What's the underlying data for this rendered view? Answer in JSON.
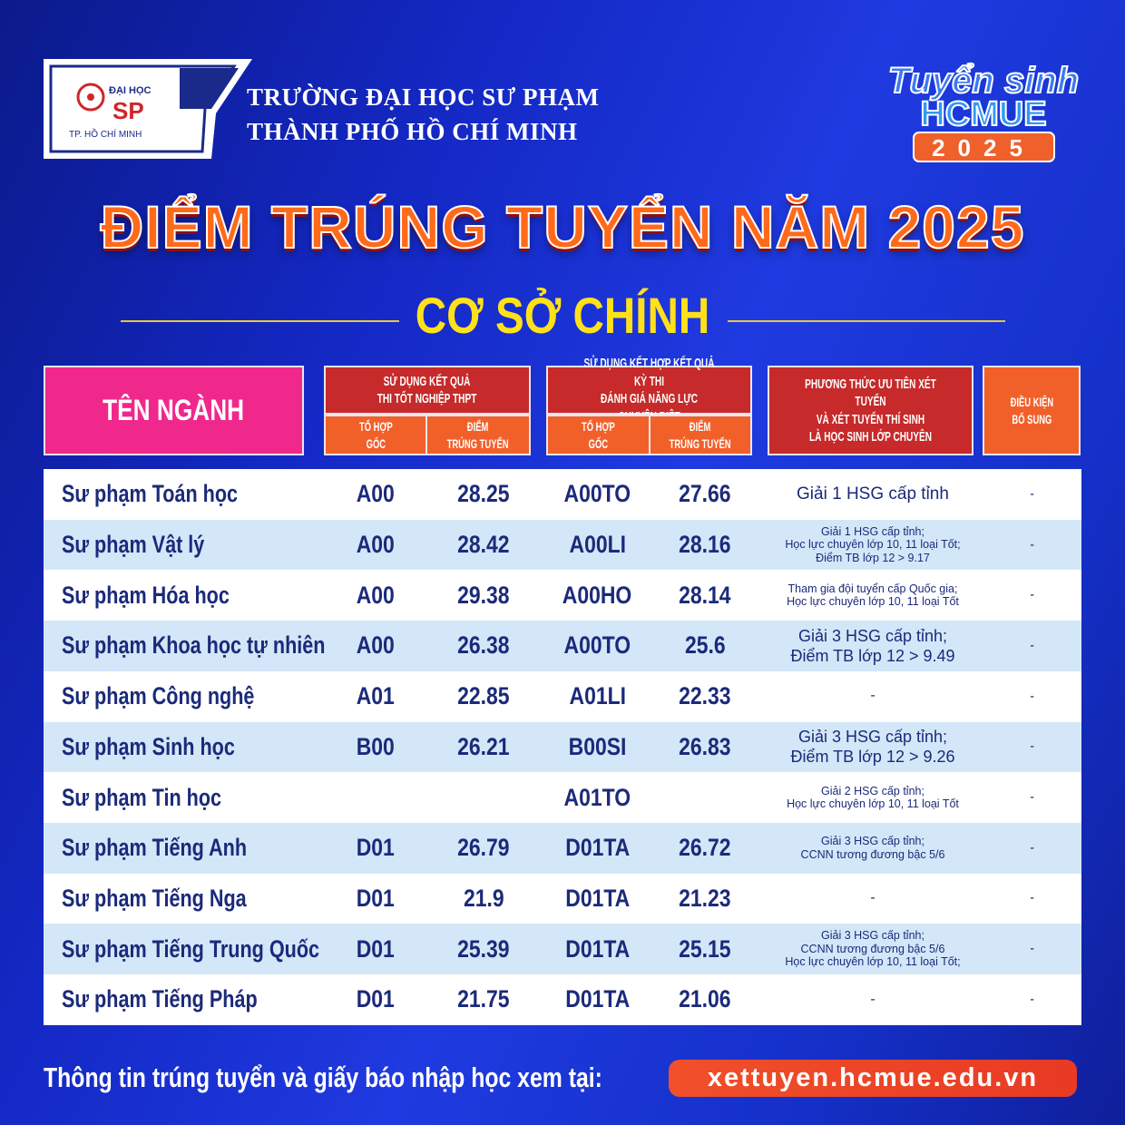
{
  "header": {
    "logo_text": {
      "top": "ĐẠI HỌC",
      "mid": "SP",
      "bottom": "TP. HỒ CHÍ MINH"
    },
    "school_line1": "TRƯỜNG ĐẠI HỌC SƯ PHẠM",
    "school_line2": "THÀNH PHỐ HỒ CHÍ MINH",
    "badge": {
      "line1": "Tuyển sinh",
      "line2": "HCMUE",
      "line3": "2025"
    }
  },
  "title": "ĐIỂM TRÚNG TUYỂN NĂM 2025",
  "subtitle": "CƠ SỞ CHÍNH",
  "table": {
    "headers": {
      "name": "TÊN NGÀNH",
      "group1": "SỬ DỤNG KẾT QUẢ THI TỐT NGHIỆP THPT",
      "group1_line1": "SỬ DỤNG KẾT QUẢ",
      "group1_line2": "THI TỐT NGHIỆP THPT",
      "group2_line1": "SỬ DỤNG KẾT HỢP KẾT QUẢ KỲ THI",
      "group2_line2": "ĐÁNH GIÁ NĂNG LỰC CHUYÊN BIỆT",
      "combo_line1": "TỔ HỢP",
      "combo_line2": "GỐC",
      "score_line1": "ĐIỂM",
      "score_line2": "TRÚNG TUYỂN",
      "priority_line1": "PHƯƠNG THỨC ƯU TIÊN XÉT TUYỂN",
      "priority_line2": "VÀ XÉT TUYỂN THÍ SINH",
      "priority_line3": "LÀ HỌC SINH LỚP CHUYÊN",
      "extra_line1": "ĐIỀU KIỆN",
      "extra_line2": "BỔ SUNG"
    },
    "rows": [
      {
        "name": "Sư phạm Toán học",
        "combo1": "A00",
        "score1": "28.25",
        "combo2": "A00TO",
        "score2": "27.66",
        "condition": [
          "Giải 1 HSG cấp tỉnh"
        ],
        "extra": "-"
      },
      {
        "name": "Sư phạm Vật lý",
        "combo1": "A00",
        "score1": "28.42",
        "combo2": "A00LI",
        "score2": "28.16",
        "condition": [
          "Giải 1 HSG cấp tỉnh;",
          "Học lực chuyên lớp 10, 11 loại Tốt;",
          "Điểm TB lớp 12 > 9.17"
        ],
        "extra": "-"
      },
      {
        "name": "Sư phạm Hóa học",
        "combo1": "A00",
        "score1": "29.38",
        "combo2": "A00HO",
        "score2": "28.14",
        "condition": [
          "Tham gia đội tuyển cấp Quốc gia;",
          "Học lực chuyên lớp 10, 11 loại Tốt"
        ],
        "extra": "-"
      },
      {
        "name": "Sư phạm Khoa học tự nhiên",
        "combo1": "A00",
        "score1": "26.38",
        "combo2": "A00TO",
        "score2": "25.6",
        "condition": [
          "Giải 3 HSG cấp tỉnh;",
          "Điểm TB lớp 12 > 9.49"
        ],
        "extra": "-"
      },
      {
        "name": "Sư phạm Công nghệ",
        "combo1": "A01",
        "score1": "22.85",
        "combo2": "A01LI",
        "score2": "22.33",
        "condition": [
          "-"
        ],
        "extra": "-"
      },
      {
        "name": "Sư phạm Sinh học",
        "combo1": "B00",
        "score1": "26.21",
        "combo2": "B00SI",
        "score2": "26.83",
        "condition": [
          "Giải 3 HSG cấp tỉnh;",
          "Điểm TB lớp 12 > 9.26"
        ],
        "extra": "-"
      },
      {
        "name": "Sư phạm Tin học",
        "combo1": "",
        "score1": "",
        "combo2": "A01TO",
        "score2": "",
        "condition": [
          "Giải 2 HSG cấp tỉnh;",
          "Học lực chuyên lớp 10, 11 loại Tốt"
        ],
        "extra": "-"
      },
      {
        "name": "Sư phạm Tiếng Anh",
        "combo1": "D01",
        "score1": "26.79",
        "combo2": "D01TA",
        "score2": "26.72",
        "condition": [
          "Giải 3 HSG cấp tỉnh;",
          "CCNN tương đương bậc 5/6"
        ],
        "extra": "-"
      },
      {
        "name": "Sư phạm Tiếng Nga",
        "combo1": "D01",
        "score1": "21.9",
        "combo2": "D01TA",
        "score2": "21.23",
        "condition": [
          "-"
        ],
        "extra": "-"
      },
      {
        "name": "Sư phạm Tiếng Trung Quốc",
        "combo1": "D01",
        "score1": "25.39",
        "combo2": "D01TA",
        "score2": "25.15",
        "condition": [
          "Giải 3 HSG cấp tỉnh;",
          "CCNN tương đương bậc 5/6",
          "Học lực chuyên lớp 10, 11 loại Tốt;"
        ],
        "extra": "-"
      },
      {
        "name": "Sư phạm Tiếng Pháp",
        "combo1": "D01",
        "score1": "21.75",
        "combo2": "D01TA",
        "score2": "21.06",
        "condition": [
          "-"
        ],
        "extra": "-"
      }
    ]
  },
  "footer": {
    "text": "Thông tin trúng tuyển và giấy báo nhập học xem tại:",
    "link": "xettuyen.hcmue.edu.vn"
  },
  "colors": {
    "name_header": "#f0288c",
    "group_header": "#c62a2a",
    "sub_header": "#f2602a",
    "title": "#ff6a1a",
    "subtitle": "#ffe11a",
    "row_alt": "#d3e7f8",
    "row_text": "#1b2a7a"
  }
}
